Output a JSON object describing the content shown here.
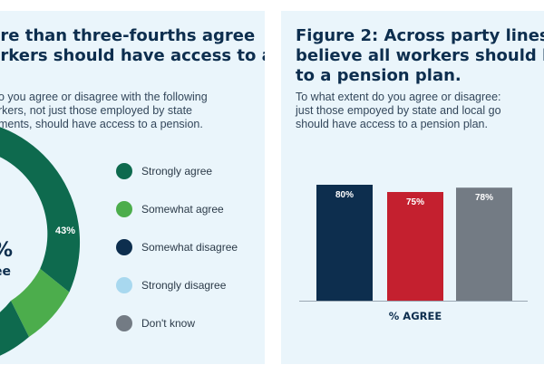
{
  "left": {
    "title_lines": [
      "ore than three-fourths agree",
      "orkers should have access to a"
    ],
    "subtitle_lines": [
      "o you agree or disagree with the following",
      "rkers, not just those employed by state",
      "ments, should have access to a pension."
    ],
    "center_value": "%",
    "center_label": "ee",
    "segment_label": "43%"
  },
  "right": {
    "title_prefix": "Figure 2:",
    "title_line1_rest": " Across party lines,",
    "title_line2": "believe all workers should h",
    "title_line3": "to a pension plan.",
    "subtitle_lines": [
      "To what extent do you agree or disagree:",
      "just those empoyed by state and local go",
      "should have access to a pension plan."
    ]
  },
  "chart_data": [
    {
      "type": "pie",
      "labels": [
        "Strongly agree",
        "Somewhat agree",
        "Somewhat disagree",
        "Strongly disagree",
        "Don't know"
      ],
      "colors": [
        "#0e6a4e",
        "#4cad4c",
        "#0d2e4e",
        "#a8d8ef",
        "#737b84"
      ],
      "legend_position": "right",
      "visible_data_labels": [
        "43%"
      ]
    },
    {
      "type": "bar",
      "categories": [
        "",
        "",
        ""
      ],
      "values": [
        80,
        75,
        78
      ],
      "value_labels": [
        "80%",
        "75%",
        "78%"
      ],
      "colors": [
        "#0d2e4e",
        "#c4202f",
        "#737b84"
      ],
      "xlabel": "% AGREE",
      "ylabel": "",
      "ylim": [
        0,
        80
      ],
      "grid": false
    }
  ]
}
